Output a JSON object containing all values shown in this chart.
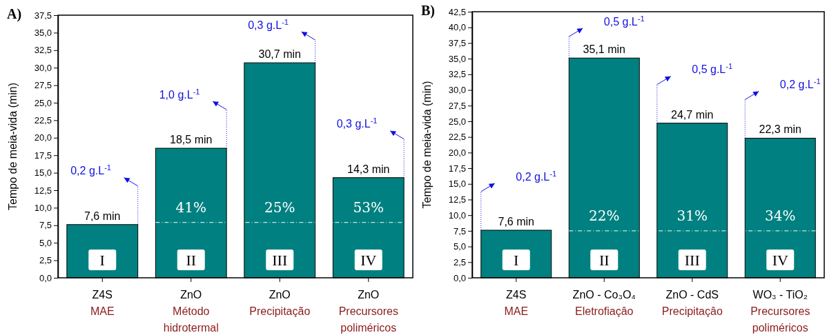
{
  "chart_data": [
    {
      "type": "bar",
      "title": "A)",
      "ylabel": "Tempo de meia-vida (min)",
      "categories": [
        "Z4S\nMAE",
        "ZnO\nMétodo\nhidrotermal",
        "ZnO\nPrecipitação",
        "ZnO\nPrecursores\npoliméricos"
      ],
      "values": [
        7.6,
        18.5,
        30.7,
        14.3
      ],
      "color": "#008080",
      "value_labels": [
        "7,6 min",
        "18,5 min",
        "30,7 min",
        "14,3 min"
      ],
      "ylim": [
        0,
        37.5
      ],
      "yticks": [
        {
          "value": 0,
          "label": "0,0"
        },
        {
          "value": 2.5,
          "label": "2,5"
        },
        {
          "value": 5,
          "label": "5,0"
        },
        {
          "value": 7.5,
          "label": "7,5"
        },
        {
          "value": 10,
          "label": "10,0"
        },
        {
          "value": 12.5,
          "label": "12,5"
        },
        {
          "value": 15,
          "label": "15,0"
        },
        {
          "value": 17.5,
          "label": "17,5"
        },
        {
          "value": 20,
          "label": "20,0"
        },
        {
          "value": 22.5,
          "label": "22,5"
        },
        {
          "value": 25,
          "label": "25,0"
        },
        {
          "value": 27.5,
          "label": "27,5"
        },
        {
          "value": 30,
          "label": "30,0"
        },
        {
          "value": 32.5,
          "label": "32,5"
        },
        {
          "value": 35,
          "label": "35,0"
        },
        {
          "value": 37.5,
          "label": "37,5"
        }
      ],
      "ref_lines": [
        {
          "axis": "y",
          "value": 7.9,
          "color": "#ffffff",
          "line_style": "dashed"
        }
      ],
      "annotations": [
        "0,2 g.L$^{-1}$",
        "1,0 g.L$^{-1}$",
        "0,3 g.L$^{-1}$",
        "0,3 g.L$^{-1}$",
        "41%",
        "25%",
        "53%",
        "I",
        "II",
        "III",
        "IV"
      ]
    },
    {
      "type": "bar",
      "title": "B)",
      "ylabel": "Tempo de meia-vida (min)",
      "categories": [
        "Z4S\nMAE",
        "ZnO - Co₃O₄\nEletrofiaçâo",
        "ZnO - CdS\nPrecipitaçâo",
        "WO₃ - TiO₂\nPrecursores\npoliméricos"
      ],
      "values": [
        7.6,
        35.1,
        24.7,
        22.3
      ],
      "color": "#008080",
      "value_labels": [
        "7,6 min",
        "35,1 min",
        "24,7 min",
        "22,3 min"
      ],
      "ylim": [
        0,
        42.5
      ],
      "yticks": [
        {
          "value": 0,
          "label": "0,0"
        },
        {
          "value": 2.5,
          "label": "2,5"
        },
        {
          "value": 5,
          "label": "5,0"
        },
        {
          "value": 7.5,
          "label": "7,5"
        },
        {
          "value": 10,
          "label": "10,0"
        },
        {
          "value": 12.5,
          "label": "12,5"
        },
        {
          "value": 15,
          "label": "15,0"
        },
        {
          "value": 17.5,
          "label": "17,5"
        },
        {
          "value": 20,
          "label": "20,0"
        },
        {
          "value": 22.5,
          "label": "22,5"
        },
        {
          "value": 25,
          "label": "25,0"
        },
        {
          "value": 27.5,
          "label": "27,5"
        },
        {
          "value": 30,
          "label": "30,0"
        },
        {
          "value": 32.5,
          "label": "32,5"
        },
        {
          "value": 35,
          "label": "35,0"
        },
        {
          "value": 37.5,
          "label": "37,5"
        },
        {
          "value": 40,
          "label": "40,0"
        },
        {
          "value": 42.5,
          "label": "42,5"
        }
      ],
      "ref_lines": [
        {
          "axis": "y",
          "value": 7.5,
          "color": "#ffffff",
          "line_style": "dashed"
        }
      ],
      "annotations": [
        "0,2 g.L$^{-1}$",
        "0,5 g.L$^{-1}$",
        "0,5 g.L$^{-1}$",
        "0,2 g.L$^{-1}$",
        "22%",
        "31%",
        "34%",
        "I",
        "II",
        "III",
        "IV"
      ]
    }
  ]
}
